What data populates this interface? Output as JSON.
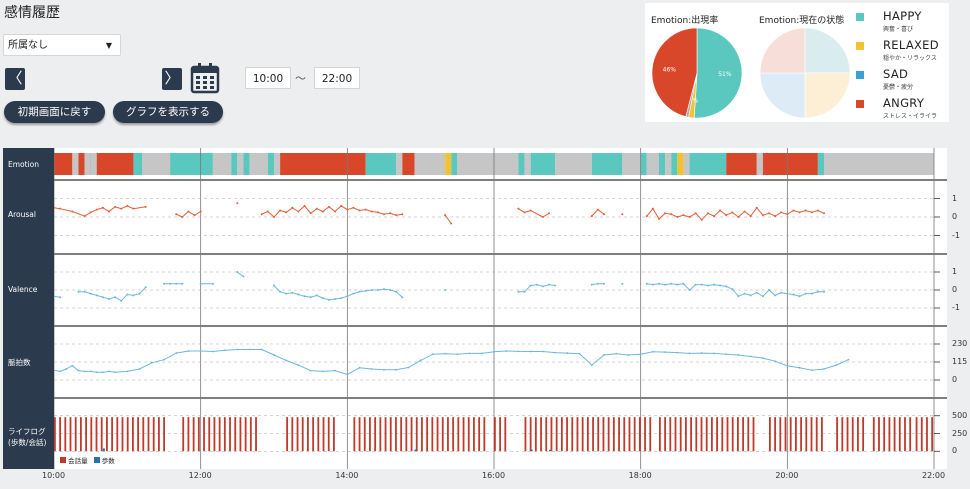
{
  "page": {
    "title": "感情履歴"
  },
  "filter": {
    "selected": "所属なし"
  },
  "nav": {
    "prev_glyph": "〈",
    "next_glyph": "〉"
  },
  "time_range": {
    "start": "10:00",
    "separator": "～",
    "end": "22:00"
  },
  "buttons": {
    "reset": "初期画面に戻す",
    "show_graph": "グラフを表示する"
  },
  "pies": {
    "occurrence": {
      "title": "Emotion:出現率",
      "labels": [
        "51%",
        "2%",
        "46%"
      ],
      "slices": [
        51,
        2,
        1,
        46
      ]
    },
    "current": {
      "title": "Emotion:現在の状態",
      "slices": [
        25,
        25,
        25,
        25
      ]
    }
  },
  "emotion_legend": [
    {
      "name": "HAPPY",
      "sub": "興奮・喜び",
      "color": "#5bc8bf"
    },
    {
      "name": "RELAXED",
      "sub": "穏やか・リラックス",
      "color": "#f1c232"
    },
    {
      "name": "SAD",
      "sub": "憂鬱・疲労",
      "color": "#3aa0d8"
    },
    {
      "name": "ANGRY",
      "sub": "ストレス・イライラ",
      "color": "#d9472b"
    }
  ],
  "colors": {
    "happy": "#5bc8bf",
    "relaxed": "#f1c232",
    "angry": "#d9472b",
    "neutral": "#c6c6c6",
    "valence": "#6cb8dc",
    "arousal": "#e0603a",
    "steps": "#2b6fb0",
    "dark": "#2b3a4c"
  },
  "rows": {
    "emotion": "Emotion",
    "arousal": "Arousal",
    "valence": "Valence",
    "heart": "脈拍数",
    "lifelog_1": "ライフログ",
    "lifelog_2": "(歩数/会話)"
  },
  "y_ticks": {
    "arousal": [
      "1",
      "0",
      "-1"
    ],
    "valence": [
      "1",
      "0",
      "-1"
    ],
    "heart": [
      "230",
      "115",
      "0"
    ],
    "lifelog": [
      "500",
      "250",
      "0"
    ]
  },
  "lifelog_legend": {
    "talk": "会話量",
    "steps": "歩数"
  },
  "x_ticks": [
    "10:00",
    "12:00",
    "14:00",
    "16:00",
    "18:00",
    "20:00",
    "22:00"
  ],
  "chart_data": {
    "type": "line",
    "x_range": [
      "10:00",
      "22:00"
    ],
    "emotion_segments": [
      [
        "10:00",
        "10:15",
        "angry"
      ],
      [
        "10:15",
        "10:20",
        "neutral"
      ],
      [
        "10:20",
        "10:25",
        "angry"
      ],
      [
        "10:25",
        "10:30",
        "neutral"
      ],
      [
        "10:30",
        "11:05",
        "angry"
      ],
      [
        "10:30",
        "10:35",
        "neutral"
      ],
      [
        "11:05",
        "11:12",
        "happy"
      ],
      [
        "11:12",
        "11:35",
        "neutral"
      ],
      [
        "11:35",
        "12:10",
        "happy"
      ],
      [
        "12:10",
        "12:25",
        "neutral"
      ],
      [
        "12:25",
        "12:30",
        "happy"
      ],
      [
        "12:30",
        "12:35",
        "neutral"
      ],
      [
        "12:35",
        "12:40",
        "happy"
      ],
      [
        "12:40",
        "12:55",
        "neutral"
      ],
      [
        "12:55",
        "13:00",
        "happy"
      ],
      [
        "13:00",
        "13:05",
        "neutral"
      ],
      [
        "13:05",
        "14:15",
        "angry"
      ],
      [
        "14:15",
        "14:40",
        "happy"
      ],
      [
        "14:40",
        "14:45",
        "neutral"
      ],
      [
        "14:45",
        "14:55",
        "angry"
      ],
      [
        "14:55",
        "15:20",
        "neutral"
      ],
      [
        "15:20",
        "15:25",
        "relaxed"
      ],
      [
        "15:25",
        "15:30",
        "happy"
      ],
      [
        "15:30",
        "16:20",
        "neutral"
      ],
      [
        "16:20",
        "16:25",
        "happy"
      ],
      [
        "16:25",
        "16:30",
        "neutral"
      ],
      [
        "16:30",
        "16:50",
        "happy"
      ],
      [
        "16:50",
        "17:20",
        "neutral"
      ],
      [
        "17:20",
        "17:45",
        "happy"
      ],
      [
        "17:45",
        "18:00",
        "neutral"
      ],
      [
        "18:00",
        "18:05",
        "happy"
      ],
      [
        "18:05",
        "18:15",
        "neutral"
      ],
      [
        "18:15",
        "18:20",
        "happy"
      ],
      [
        "18:20",
        "18:25",
        "neutral"
      ],
      [
        "18:25",
        "18:30",
        "happy"
      ],
      [
        "18:30",
        "18:35",
        "relaxed"
      ],
      [
        "18:35",
        "18:40",
        "neutral"
      ],
      [
        "18:40",
        "19:10",
        "happy"
      ],
      [
        "19:10",
        "19:35",
        "angry"
      ],
      [
        "19:35",
        "19:40",
        "neutral"
      ],
      [
        "19:40",
        "20:25",
        "angry"
      ],
      [
        "20:25",
        "20:30",
        "happy"
      ],
      [
        "20:30",
        "22:00",
        "neutral"
      ]
    ],
    "arousal": {
      "ylim": [
        -1,
        1
      ],
      "points": [
        [
          "10:00",
          0.5
        ],
        [
          "10:05",
          0.45
        ],
        [
          "10:15",
          0.3
        ],
        [
          "10:25",
          0.05
        ],
        [
          "10:30",
          0.25
        ],
        [
          "10:35",
          0.4
        ],
        [
          "10:40",
          0.5
        ],
        [
          "10:45",
          0.3
        ],
        [
          "10:50",
          0.55
        ],
        [
          "10:55",
          0.45
        ],
        [
          "11:00",
          0.6
        ],
        [
          "11:05",
          0.45
        ],
        [
          "11:15",
          0.55
        ],
        [
          "11:40",
          0.15
        ],
        [
          "11:45",
          0.0
        ],
        [
          "11:50",
          0.3
        ],
        [
          "11:55",
          0.1
        ],
        [
          "12:00",
          0.3
        ],
        [
          "12:30",
          0.75
        ],
        [
          "12:50",
          0.15
        ],
        [
          "12:55",
          0.3
        ],
        [
          "13:00",
          0.0
        ],
        [
          "13:05",
          0.35
        ],
        [
          "13:10",
          0.25
        ],
        [
          "13:15",
          0.5
        ],
        [
          "13:20",
          0.3
        ],
        [
          "13:25",
          0.6
        ],
        [
          "13:30",
          0.2
        ],
        [
          "13:35",
          0.45
        ],
        [
          "13:40",
          0.3
        ],
        [
          "13:45",
          0.55
        ],
        [
          "13:50",
          0.3
        ],
        [
          "13:55",
          0.6
        ],
        [
          "14:00",
          0.4
        ],
        [
          "14:05",
          0.5
        ],
        [
          "14:10",
          0.35
        ],
        [
          "14:15",
          0.4
        ],
        [
          "14:20",
          0.3
        ],
        [
          "14:25",
          0.25
        ],
        [
          "14:30",
          0.15
        ],
        [
          "14:35",
          0.2
        ],
        [
          "14:40",
          0.1
        ],
        [
          "14:45",
          0.15
        ],
        [
          "15:20",
          0.1
        ],
        [
          "15:25",
          -0.35
        ],
        [
          "16:20",
          0.45
        ],
        [
          "16:25",
          0.25
        ],
        [
          "16:30",
          0.35
        ],
        [
          "16:40",
          0.0
        ],
        [
          "16:45",
          0.2
        ],
        [
          "17:20",
          0.05
        ],
        [
          "17:25",
          0.4
        ],
        [
          "17:30",
          0.15
        ],
        [
          "17:45",
          0.15
        ],
        [
          "18:05",
          0.05
        ],
        [
          "18:10",
          0.45
        ],
        [
          "18:15",
          -0.1
        ],
        [
          "18:20",
          0.2
        ],
        [
          "18:25",
          0.15
        ],
        [
          "18:30",
          0.0
        ],
        [
          "18:35",
          0.1
        ],
        [
          "18:40",
          0.0
        ],
        [
          "18:45",
          0.2
        ],
        [
          "18:50",
          -0.15
        ],
        [
          "18:55",
          0.2
        ],
        [
          "19:00",
          0.05
        ],
        [
          "19:05",
          0.35
        ],
        [
          "19:10",
          0.1
        ],
        [
          "19:15",
          0.25
        ],
        [
          "19:20",
          0.0
        ],
        [
          "19:25",
          0.3
        ],
        [
          "19:30",
          0.05
        ],
        [
          "19:35",
          0.5
        ],
        [
          "19:40",
          0.1
        ],
        [
          "19:45",
          0.2
        ],
        [
          "19:50",
          0.05
        ],
        [
          "19:55",
          0.25
        ],
        [
          "20:00",
          0.15
        ],
        [
          "20:05",
          0.35
        ],
        [
          "20:10",
          0.25
        ],
        [
          "20:15",
          0.35
        ],
        [
          "20:20",
          0.25
        ],
        [
          "20:25",
          0.35
        ],
        [
          "20:30",
          0.2
        ]
      ]
    },
    "valence": {
      "ylim": [
        -1,
        1
      ],
      "points": [
        [
          "10:00",
          -0.35
        ],
        [
          "10:05",
          -0.4
        ],
        [
          "10:20",
          -0.1
        ],
        [
          "10:25",
          -0.1
        ],
        [
          "10:30",
          -0.2
        ],
        [
          "10:35",
          -0.3
        ],
        [
          "10:40",
          -0.4
        ],
        [
          "10:45",
          -0.5
        ],
        [
          "10:50",
          -0.4
        ],
        [
          "10:55",
          -0.6
        ],
        [
          "11:00",
          -0.25
        ],
        [
          "11:05",
          -0.3
        ],
        [
          "11:10",
          -0.2
        ],
        [
          "11:15",
          0.15
        ],
        [
          "11:30",
          0.35
        ],
        [
          "11:35",
          0.35
        ],
        [
          "11:40",
          0.35
        ],
        [
          "11:45",
          0.35
        ],
        [
          "12:00",
          0.35
        ],
        [
          "12:10",
          0.35
        ],
        [
          "12:30",
          1.0
        ],
        [
          "12:35",
          0.75
        ],
        [
          "13:00",
          0.25
        ],
        [
          "13:05",
          -0.1
        ],
        [
          "13:10",
          -0.2
        ],
        [
          "13:15",
          -0.15
        ],
        [
          "13:20",
          -0.25
        ],
        [
          "13:25",
          -0.35
        ],
        [
          "13:30",
          -0.4
        ],
        [
          "13:35",
          -0.3
        ],
        [
          "13:40",
          -0.45
        ],
        [
          "13:45",
          -0.55
        ],
        [
          "13:50",
          -0.5
        ],
        [
          "13:55",
          -0.45
        ],
        [
          "14:00",
          -0.35
        ],
        [
          "14:05",
          -0.2
        ],
        [
          "14:10",
          -0.1
        ],
        [
          "14:15",
          -0.05
        ],
        [
          "14:20",
          0.0
        ],
        [
          "14:25",
          0.0
        ],
        [
          "14:30",
          0.05
        ],
        [
          "14:35",
          0.0
        ],
        [
          "14:40",
          -0.1
        ],
        [
          "14:45",
          -0.4
        ],
        [
          "15:20",
          0.0
        ],
        [
          "16:20",
          -0.1
        ],
        [
          "16:25",
          -0.1
        ],
        [
          "16:30",
          0.25
        ],
        [
          "16:35",
          0.3
        ],
        [
          "16:40",
          0.2
        ],
        [
          "16:45",
          0.3
        ],
        [
          "16:50",
          0.25
        ],
        [
          "17:20",
          0.3
        ],
        [
          "17:25",
          0.35
        ],
        [
          "17:30",
          0.35
        ],
        [
          "17:45",
          0.35
        ],
        [
          "18:05",
          0.35
        ],
        [
          "18:10",
          0.3
        ],
        [
          "18:15",
          0.35
        ],
        [
          "18:20",
          0.3
        ],
        [
          "18:25",
          0.35
        ],
        [
          "18:30",
          0.3
        ],
        [
          "18:35",
          0.35
        ],
        [
          "18:40",
          0.0
        ],
        [
          "18:45",
          0.3
        ],
        [
          "18:50",
          0.3
        ],
        [
          "18:55",
          0.25
        ],
        [
          "19:00",
          0.3
        ],
        [
          "19:05",
          0.25
        ],
        [
          "19:10",
          0.2
        ],
        [
          "19:15",
          0.05
        ],
        [
          "19:20",
          -0.35
        ],
        [
          "19:25",
          -0.2
        ],
        [
          "19:30",
          -0.3
        ],
        [
          "19:35",
          -0.15
        ],
        [
          "19:40",
          -0.35
        ],
        [
          "19:45",
          0.0
        ],
        [
          "19:50",
          -0.3
        ],
        [
          "19:55",
          -0.15
        ],
        [
          "20:00",
          -0.2
        ],
        [
          "20:05",
          -0.25
        ],
        [
          "20:10",
          -0.35
        ],
        [
          "20:15",
          -0.2
        ],
        [
          "20:20",
          -0.2
        ],
        [
          "20:25",
          -0.1
        ],
        [
          "20:30",
          -0.1
        ]
      ]
    },
    "heart_rate": {
      "ylim": [
        0,
        230
      ],
      "points": [
        [
          "10:00",
          62
        ],
        [
          "10:05",
          55
        ],
        [
          "10:10",
          70
        ],
        [
          "10:15",
          92
        ],
        [
          "10:20",
          60
        ],
        [
          "10:25",
          55
        ],
        [
          "10:30",
          55
        ],
        [
          "10:35",
          50
        ],
        [
          "10:40",
          50
        ],
        [
          "10:45",
          55
        ],
        [
          "10:50",
          50
        ],
        [
          "11:00",
          55
        ],
        [
          "11:10",
          70
        ],
        [
          "11:20",
          110
        ],
        [
          "11:30",
          130
        ],
        [
          "11:40",
          172
        ],
        [
          "11:50",
          185
        ],
        [
          "12:00",
          185
        ],
        [
          "12:10",
          182
        ],
        [
          "12:20",
          190
        ],
        [
          "12:30",
          195
        ],
        [
          "12:40",
          195
        ],
        [
          "12:50",
          195
        ],
        [
          "13:00",
          160
        ],
        [
          "13:10",
          125
        ],
        [
          "13:20",
          95
        ],
        [
          "13:30",
          60
        ],
        [
          "13:40",
          55
        ],
        [
          "13:50",
          60
        ],
        [
          "14:00",
          35
        ],
        [
          "14:10",
          78
        ],
        [
          "14:20",
          70
        ],
        [
          "14:30",
          65
        ],
        [
          "14:40",
          65
        ],
        [
          "14:50",
          80
        ],
        [
          "15:00",
          125
        ],
        [
          "15:10",
          165
        ],
        [
          "15:20",
          168
        ],
        [
          "15:30",
          165
        ],
        [
          "15:40",
          170
        ],
        [
          "15:50",
          170
        ],
        [
          "16:00",
          180
        ],
        [
          "16:10",
          185
        ],
        [
          "16:20",
          183
        ],
        [
          "16:30",
          182
        ],
        [
          "16:40",
          182
        ],
        [
          "16:50",
          175
        ],
        [
          "17:00",
          172
        ],
        [
          "17:10",
          168
        ],
        [
          "17:20",
          95
        ],
        [
          "17:30",
          160
        ],
        [
          "17:40",
          168
        ],
        [
          "17:50",
          160
        ],
        [
          "18:00",
          165
        ],
        [
          "18:10",
          180
        ],
        [
          "18:20",
          178
        ],
        [
          "18:30",
          175
        ],
        [
          "18:40",
          170
        ],
        [
          "18:50",
          172
        ],
        [
          "19:00",
          170
        ],
        [
          "19:10",
          165
        ],
        [
          "19:20",
          160
        ],
        [
          "19:30",
          150
        ],
        [
          "19:40",
          140
        ],
        [
          "19:50",
          120
        ],
        [
          "20:00",
          90
        ],
        [
          "20:10",
          78
        ],
        [
          "20:20",
          62
        ],
        [
          "20:30",
          70
        ],
        [
          "20:40",
          95
        ],
        [
          "20:50",
          130
        ]
      ]
    },
    "lifelog": {
      "ylim": [
        0,
        500
      ],
      "talk_active_ranges": [
        [
          "10:00",
          "11:30"
        ],
        [
          "11:45",
          "12:45"
        ],
        [
          "13:10",
          "13:50"
        ],
        [
          "14:05",
          "15:55"
        ],
        [
          "16:00",
          "16:10"
        ],
        [
          "16:25",
          "18:10"
        ],
        [
          "18:15",
          "19:35"
        ],
        [
          "19:45",
          "20:30"
        ],
        [
          "20:40",
          "21:05"
        ],
        [
          "21:10",
          "21:40"
        ],
        [
          "21:45",
          "22:00"
        ]
      ],
      "talk_level": 480,
      "step_marks": [
        [
          "10:40",
          40
        ],
        [
          "14:55",
          25
        ],
        [
          "16:30",
          25
        ],
        [
          "16:45",
          20
        ]
      ]
    }
  }
}
